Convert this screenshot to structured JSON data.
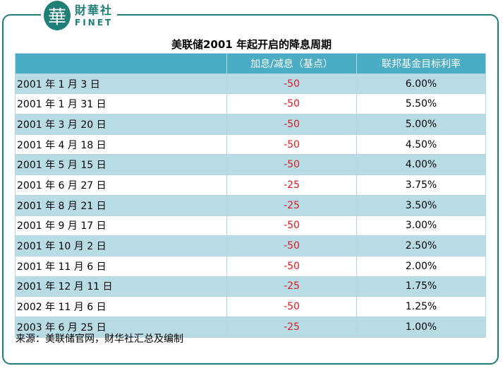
{
  "logo": {
    "glyph": "華",
    "cn": "財華社",
    "en": "FINET"
  },
  "title": "美联储2001 年起开启的降息周期",
  "table": {
    "headers": [
      "",
      "加息/减息（基点）",
      "联邦基金目标利率"
    ],
    "rows": [
      {
        "date": "2001 年 1 月 3 日",
        "change": "-50",
        "rate": "6.00%"
      },
      {
        "date": "2001 年 1 月 31 日",
        "change": "-50",
        "rate": "5.50%"
      },
      {
        "date": "2001 年 3 月 20 日",
        "change": "-50",
        "rate": "5.00%"
      },
      {
        "date": "2001 年 4 月 18 日",
        "change": "-50",
        "rate": "4.50%"
      },
      {
        "date": "2001 年 5 月 15 日",
        "change": "-50",
        "rate": "4.00%"
      },
      {
        "date": "2001 年 6 月 27 日",
        "change": "-25",
        "rate": "3.75%"
      },
      {
        "date": "2001 年 8 月 21 日",
        "change": "-25",
        "rate": "3.50%"
      },
      {
        "date": "2001 年 9 月 17 日",
        "change": "-50",
        "rate": "3.00%"
      },
      {
        "date": "2001 年 10 月 2 日",
        "change": "-50",
        "rate": "2.50%"
      },
      {
        "date": "2001 年 11 月 6 日",
        "change": "-50",
        "rate": "2.00%"
      },
      {
        "date": "2001 年 12 月 11 日",
        "change": "-25",
        "rate": "1.75%"
      },
      {
        "date": "2002 年 11 月 6 日",
        "change": "-50",
        "rate": "1.25%"
      },
      {
        "date": "2003 年 6 月 25 日",
        "change": "-25",
        "rate": "1.00%"
      }
    ]
  },
  "source": "来源：美联储官网，财华社汇总及编制",
  "colors": {
    "brand": "#1f7f77",
    "header": "#4bacc6",
    "stripe": "#b8dce6",
    "negative": "#e0191e"
  }
}
